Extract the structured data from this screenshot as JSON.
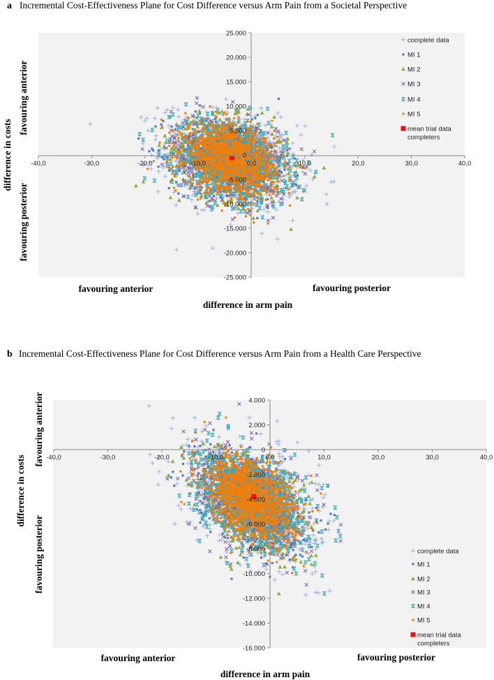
{
  "chart_data": [
    {
      "type": "scatter",
      "panel_letter": "a",
      "title": "Incremental Cost-Effectiveness Plane for Cost Difference versus Arm Pain from a Societal Perspective",
      "xlabel": "difference in arm pain",
      "ylabel": "difference in costs",
      "x_quadrant_labels": {
        "left": "favouring anterior",
        "right": "favouring posterior"
      },
      "y_quadrant_labels": {
        "top": "favouring anterior",
        "bottom": "favouring posterior"
      },
      "xlim": [
        -40,
        40
      ],
      "ylim": [
        -25000,
        25000
      ],
      "xticks": [
        -40,
        -30,
        -20,
        -10,
        0,
        10,
        20,
        30,
        40
      ],
      "xtick_labels": [
        "-40,0",
        "-30,0",
        "-20,0",
        "-10,0",
        "0,0",
        "10,0",
        "20,0",
        "30,0",
        "40,0"
      ],
      "yticks": [
        25000,
        20000,
        15000,
        10000,
        5000,
        0,
        -5000,
        -10000,
        -15000,
        -20000,
        -25000
      ],
      "ytick_labels": [
        "25.000",
        "20.000",
        "15.000",
        "10.000",
        "5.000",
        "0",
        "-5.000",
        "-10.000",
        "-15.000",
        "-20.000",
        "-25.000"
      ],
      "grid": false,
      "legend_placement": "top-right",
      "series": [
        {
          "name": "complete data",
          "marker": "plus",
          "color": "#9fb3dc",
          "cloud": {
            "mean_x": -4,
            "mean_y": -1000,
            "sd_x": 6.5,
            "sd_y": 5000,
            "corr": -0.25,
            "n": 700
          }
        },
        {
          "name": "MI 1",
          "marker": "square",
          "color": "#4a7ec4",
          "cloud": {
            "mean_x": -4,
            "mean_y": -1000,
            "sd_x": 5.5,
            "sd_y": 4300,
            "corr": -0.25,
            "n": 450
          }
        },
        {
          "name": "MI 2",
          "marker": "triangle",
          "color": "#8cb04c",
          "cloud": {
            "mean_x": -4,
            "mean_y": -1000,
            "sd_x": 5.5,
            "sd_y": 4300,
            "corr": -0.25,
            "n": 450
          }
        },
        {
          "name": "MI 3",
          "marker": "x",
          "color": "#7b5ea6",
          "cloud": {
            "mean_x": -4,
            "mean_y": -1000,
            "sd_x": 5.5,
            "sd_y": 4300,
            "corr": -0.25,
            "n": 450
          }
        },
        {
          "name": "MI 4",
          "marker": "star",
          "color": "#3ba6bd",
          "cloud": {
            "mean_x": -4,
            "mean_y": -1000,
            "sd_x": 5.3,
            "sd_y": 4200,
            "corr": -0.25,
            "n": 650
          }
        },
        {
          "name": "MI 5",
          "marker": "dot",
          "color": "#f07f0a",
          "cloud": {
            "mean_x": -4,
            "mean_y": -1000,
            "sd_x": 4.3,
            "sd_y": 3500,
            "corr": -0.25,
            "n": 1500
          }
        },
        {
          "name": "mean trial data completers",
          "marker": "bigsquare",
          "color": "#ee1111",
          "points": [
            [
              -3.7,
              -600
            ]
          ]
        }
      ]
    },
    {
      "type": "scatter",
      "panel_letter": "b",
      "title": "Incremental Cost-Effectiveness Plane for Cost Difference versus Arm Pain from a Health Care Perspective",
      "xlabel": "difference in arm pain",
      "ylabel": "difference in costs",
      "x_quadrant_labels": {
        "left": "favouring anterior",
        "right": "favouring posterior"
      },
      "y_quadrant_labels": {
        "top": "favouring anterior",
        "bottom": "favouring posterior"
      },
      "xlim": [
        -40,
        40
      ],
      "ylim": [
        -16000,
        4000
      ],
      "xticks": [
        -40,
        -30,
        -20,
        -10,
        0,
        10,
        20,
        30,
        40
      ],
      "xtick_labels": [
        "-40,0",
        "-30,0",
        "-20,0",
        "-10,0",
        "0,0",
        "10,0",
        "20,0",
        "30,0",
        "40,0"
      ],
      "yticks": [
        4000,
        2000,
        0,
        -2000,
        -4000,
        -6000,
        -8000,
        -10000,
        -12000,
        -14000,
        -16000
      ],
      "ytick_labels": [
        "4.000",
        "2.000",
        "0",
        "-2.000",
        "-4.000",
        "-6.000",
        "-8.000",
        "-10.000",
        "-12.000",
        "-14.000",
        "-16.000"
      ],
      "grid": false,
      "legend_placement": "bottom-right",
      "series": [
        {
          "name": "complete data",
          "marker": "plus",
          "color": "#9fb3dc",
          "cloud": {
            "mean_x": -3,
            "mean_y": -4000,
            "sd_x": 6,
            "sd_y": 2300,
            "corr": -0.4,
            "n": 700
          }
        },
        {
          "name": "MI 1",
          "marker": "square",
          "color": "#4a7ec4",
          "cloud": {
            "mean_x": -3.5,
            "mean_y": -4200,
            "sd_x": 5.2,
            "sd_y": 2100,
            "corr": -0.4,
            "n": 450
          }
        },
        {
          "name": "MI 2",
          "marker": "triangle",
          "color": "#8cb04c",
          "cloud": {
            "mean_x": -3.5,
            "mean_y": -4200,
            "sd_x": 5.2,
            "sd_y": 2100,
            "corr": -0.4,
            "n": 450
          }
        },
        {
          "name": "MI 3",
          "marker": "x",
          "color": "#7b5ea6",
          "cloud": {
            "mean_x": -3.5,
            "mean_y": -4300,
            "sd_x": 5.2,
            "sd_y": 2200,
            "corr": -0.4,
            "n": 450
          }
        },
        {
          "name": "MI 4",
          "marker": "star",
          "color": "#3ba6bd",
          "cloud": {
            "mean_x": -3.5,
            "mean_y": -4200,
            "sd_x": 5,
            "sd_y": 2000,
            "corr": -0.4,
            "n": 650
          }
        },
        {
          "name": "MI 5",
          "marker": "dot",
          "color": "#f07f0a",
          "cloud": {
            "mean_x": -3.5,
            "mean_y": -4000,
            "sd_x": 4,
            "sd_y": 1650,
            "corr": -0.4,
            "n": 1500
          }
        },
        {
          "name": "mean trial data completers",
          "marker": "bigsquare",
          "color": "#ee1111",
          "points": [
            [
              -3,
              -3800
            ]
          ]
        }
      ]
    }
  ]
}
